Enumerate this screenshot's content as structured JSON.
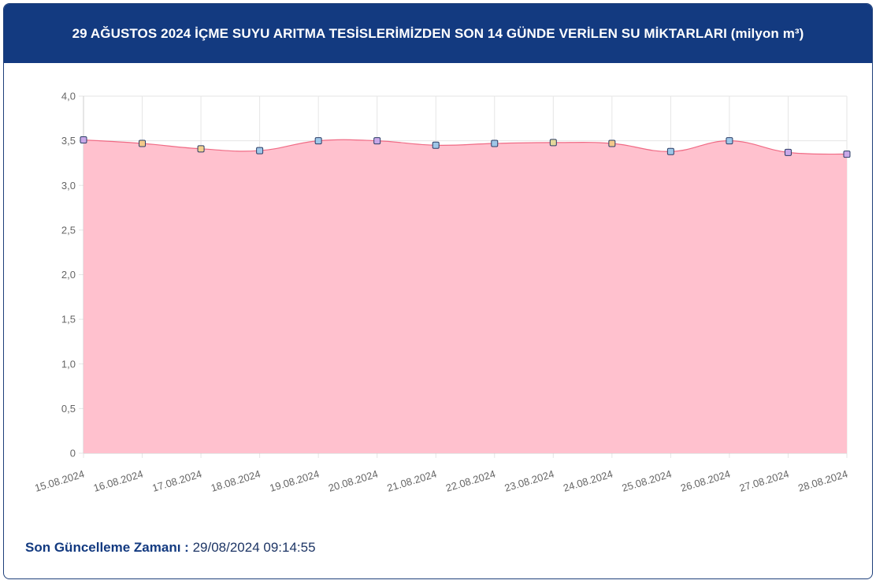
{
  "header": {
    "title": "29 AĞUSTOS 2024 İÇME SUYU ARITMA TESİSLERİMİZDEN SON 14 GÜNDE VERİLEN SU MİKTARLARI (milyon m³)"
  },
  "footer": {
    "label": "Son Güncelleme Zamanı :",
    "value": "29/08/2024 09:14:55"
  },
  "colors": {
    "header_bg": "#133a80",
    "area_fill": "#ffc1ce",
    "line": "#f06b85",
    "grid": "#e5e5e5"
  },
  "chart_data": {
    "type": "area",
    "title": "29 AĞUSTOS 2024 İÇME SUYU ARITMA TESİSLERİMİZDEN SON 14 GÜNDE VERİLEN SU MİKTARLARI (milyon m³)",
    "xlabel": "",
    "ylabel": "",
    "ylim": [
      0,
      4.0
    ],
    "yticks": [
      "0",
      "0,5",
      "1,0",
      "1,5",
      "2,0",
      "2,5",
      "3,0",
      "3,5",
      "4,0"
    ],
    "grid": true,
    "legend": "none",
    "categories": [
      "15.08.2024",
      "16.08.2024",
      "17.08.2024",
      "18.08.2024",
      "19.08.2024",
      "20.08.2024",
      "21.08.2024",
      "22.08.2024",
      "23.08.2024",
      "24.08.2024",
      "25.08.2024",
      "26.08.2024",
      "27.08.2024",
      "28.08.2024"
    ],
    "values": [
      3.51,
      3.47,
      3.41,
      3.39,
      3.5,
      3.5,
      3.45,
      3.47,
      3.48,
      3.47,
      3.38,
      3.5,
      3.37,
      3.35
    ],
    "marker_colors": [
      "#c9a8e8",
      "#f3c98a",
      "#f3d08e",
      "#9fc7e8",
      "#9fc7e8",
      "#c9a8e8",
      "#9fc7e8",
      "#9fc7e8",
      "#e3d89a",
      "#f3c98a",
      "#9fc7e8",
      "#9fc7e8",
      "#c9a8e8",
      "#c9a8e8"
    ]
  }
}
